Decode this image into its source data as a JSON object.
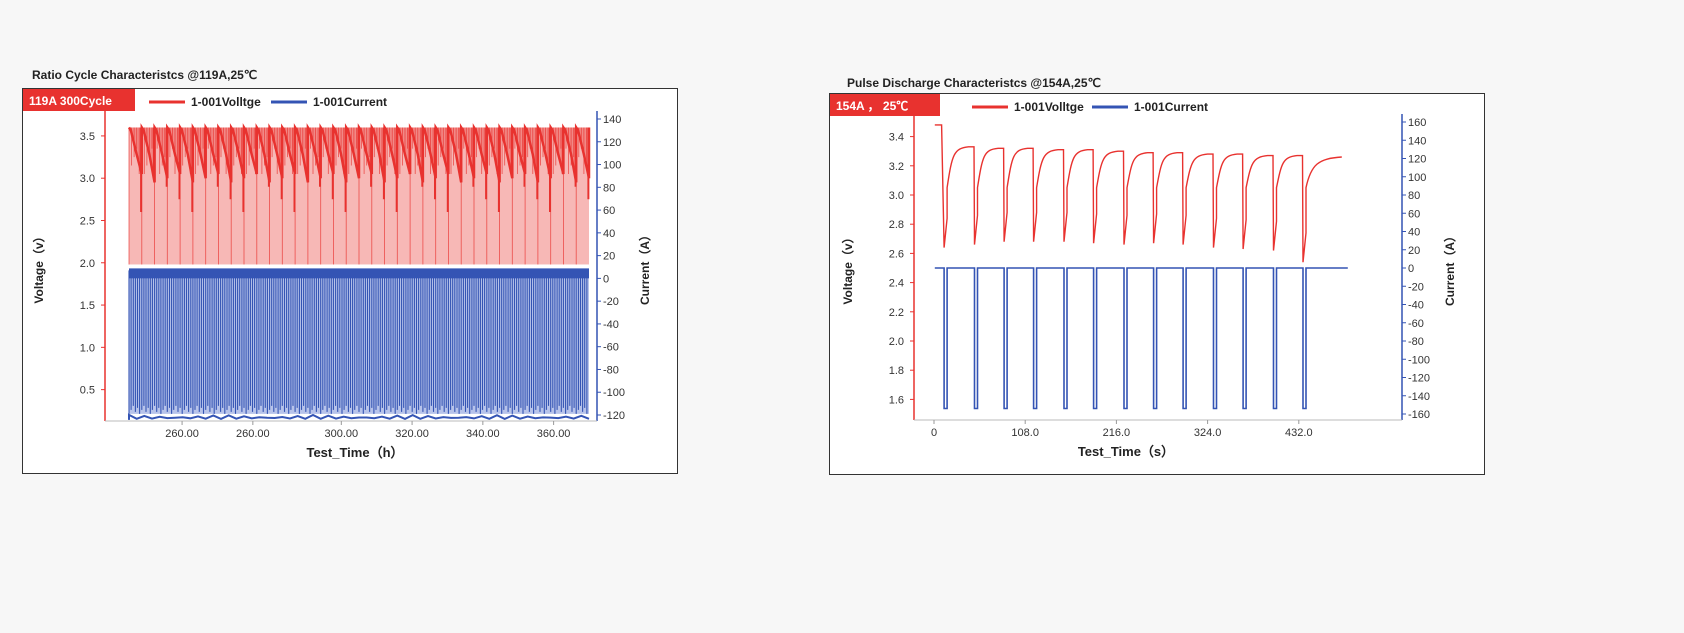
{
  "charts": [
    {
      "title": "Ratio Cycle Characteristcs @119A,25℃",
      "badge": "119A  300Cycle",
      "legend": [
        "1-001Volltge",
        "1-001Current"
      ],
      "ylabel_left": "Voltage（v）",
      "ylabel_right": "Current（A）",
      "xlabel": "Test_Time（h）",
      "left_ticks": [
        "3.5",
        "3.0",
        "2.5",
        "2.0",
        "1.5",
        "1.0",
        "0.5"
      ],
      "right_ticks": [
        "140",
        "120",
        "100",
        "80",
        "60",
        "40",
        "20",
        "0",
        "-20",
        "-40",
        "-60",
        "-80",
        "-100",
        "-120"
      ],
      "x_ticks": [
        "260.00",
        "260.00",
        "300.00",
        "320.00",
        "340.00",
        "360.00"
      ]
    },
    {
      "title": "Pulse Discharge Characteristcs @154A,25℃",
      "badge": "154A ， 25℃",
      "legend": [
        "1-001Volltge",
        "1-001Current"
      ],
      "ylabel_left": "Voltage（v）",
      "ylabel_right": "Current（A）",
      "xlabel": "Test_Time（s）",
      "left_ticks": [
        "3.4",
        "3.2",
        "3.0",
        "2.8",
        "2.6",
        "2.4",
        "2.2",
        "2.0",
        "1.8",
        "1.6"
      ],
      "right_ticks": [
        "160",
        "140",
        "120",
        "100",
        "80",
        "60",
        "40",
        "20",
        "0",
        "-20",
        "-40",
        "-60",
        "-80",
        "-100",
        "-120",
        "-140",
        "-160"
      ],
      "x_ticks": [
        "0",
        "108.0",
        "216.0",
        "324.0",
        "432.0"
      ]
    }
  ],
  "colors": {
    "voltage": "#e8322f",
    "current": "#3454b4",
    "badge": "#e8322f",
    "left_axis": "#e8322f",
    "right_axis": "#3454b4"
  },
  "chart_data": [
    {
      "type": "line",
      "title": "Ratio Cycle Characteristcs @119A,25℃",
      "xlabel": "Test_Time（h）",
      "ylabel": "Voltage（v）",
      "y2label": "Current（A）",
      "xlim": [
        240,
        370
      ],
      "ylim": [
        0.2,
        3.7
      ],
      "y2lim": [
        -120,
        140
      ],
      "cycles": 36,
      "series": [
        {
          "name": "1-001Volltge",
          "axis": "left",
          "charge_top": 3.6,
          "rest_low": 1.98,
          "dip_low": 2.6
        },
        {
          "name": "1-001Current",
          "axis": "right",
          "charge": 0,
          "discharge": -119
        }
      ]
    },
    {
      "type": "line",
      "title": "Pulse Discharge Characteristcs @154A,25℃",
      "xlabel": "Test_Time（s）",
      "ylabel": "Voltage（v）",
      "y2label": "Current（A）",
      "xlim": [
        0,
        540
      ],
      "ylim": [
        1.5,
        3.5
      ],
      "y2lim": [
        -160,
        160
      ],
      "series": [
        {
          "name": "1-001Volltge",
          "axis": "left",
          "pulse_x": [
            12,
            48,
            83,
            118,
            154,
            189,
            225,
            260,
            295,
            331,
            366,
            402,
            437
          ],
          "recovery_top": [
            3.32,
            3.31,
            3.31,
            3.3,
            3.3,
            3.29,
            3.28,
            3.28,
            3.27,
            3.27,
            3.26,
            3.26,
            3.25
          ],
          "dip_low": [
            2.64,
            2.66,
            2.68,
            2.68,
            2.68,
            2.67,
            2.66,
            2.67,
            2.66,
            2.64,
            2.63,
            2.62,
            2.54
          ]
        },
        {
          "name": "1-001Current",
          "axis": "right",
          "rest": 0,
          "pulse": -154,
          "pulse_x": [
            12,
            48,
            83,
            118,
            154,
            189,
            225,
            260,
            295,
            331,
            366,
            402,
            437
          ]
        }
      ]
    }
  ]
}
